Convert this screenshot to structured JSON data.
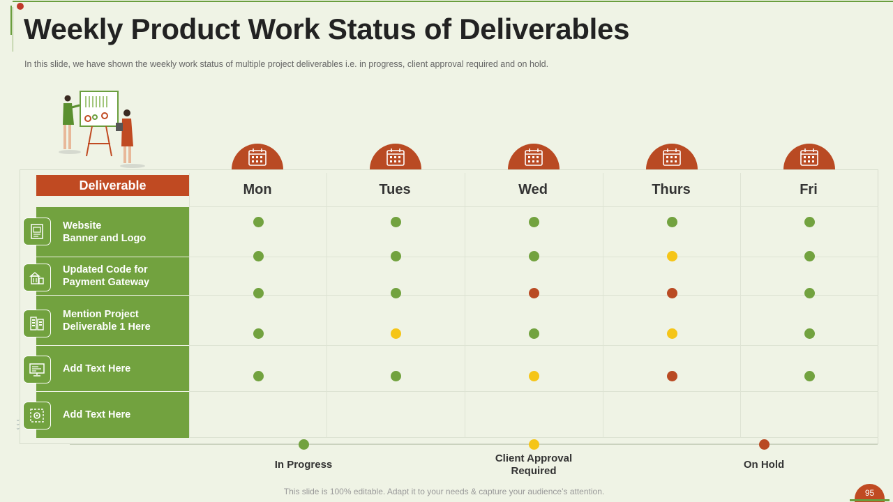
{
  "slide": {
    "title": "Weekly Product Work Status of Deliverables",
    "subtitle": "In this slide, we have  shown the weekly work status of multiple project deliverables  i.e. in progress,  client approval  required  and on hold.",
    "footer": "This slide is 100% editable. Adapt it to your needs & capture your audience’s attention.",
    "page_number": "95"
  },
  "table": {
    "header": "Deliverable",
    "days": [
      "Mon",
      "Tues",
      "Wed",
      "Thurs",
      "Fri"
    ],
    "rows": [
      {
        "label": "Website\nBanner and Logo",
        "icon": "banner-icon",
        "status": [
          "in_progress",
          "in_progress",
          "in_progress",
          "in_progress",
          "in_progress"
        ]
      },
      {
        "label": "Updated Code for\nPayment Gateway",
        "icon": "building-icon",
        "status": [
          "in_progress",
          "in_progress",
          "in_progress",
          "client_approval",
          "in_progress"
        ]
      },
      {
        "label": "Mention Project\nDeliverable 1 Here",
        "icon": "document-grid-icon",
        "status": [
          "in_progress",
          "in_progress",
          "on_hold",
          "on_hold",
          "in_progress"
        ]
      },
      {
        "label": "Add  Text Here",
        "icon": "monitor-icon",
        "status": [
          "in_progress",
          "client_approval",
          "in_progress",
          "client_approval",
          "in_progress"
        ]
      },
      {
        "label": "Add  Text Here",
        "icon": "settings-document-icon",
        "status": [
          "in_progress",
          "in_progress",
          "client_approval",
          "on_hold",
          "in_progress"
        ]
      }
    ]
  },
  "legend": [
    {
      "key": "in_progress",
      "label": "In Progress"
    },
    {
      "key": "client_approval",
      "label": "Client Approval\nRequired"
    },
    {
      "key": "on_hold",
      "label": "On Hold"
    }
  ],
  "colors": {
    "in_progress": "#72a23f",
    "client_approval": "#f5c518",
    "on_hold": "#b94a23",
    "accent": "#c04a22",
    "row_green": "#72a23f"
  }
}
